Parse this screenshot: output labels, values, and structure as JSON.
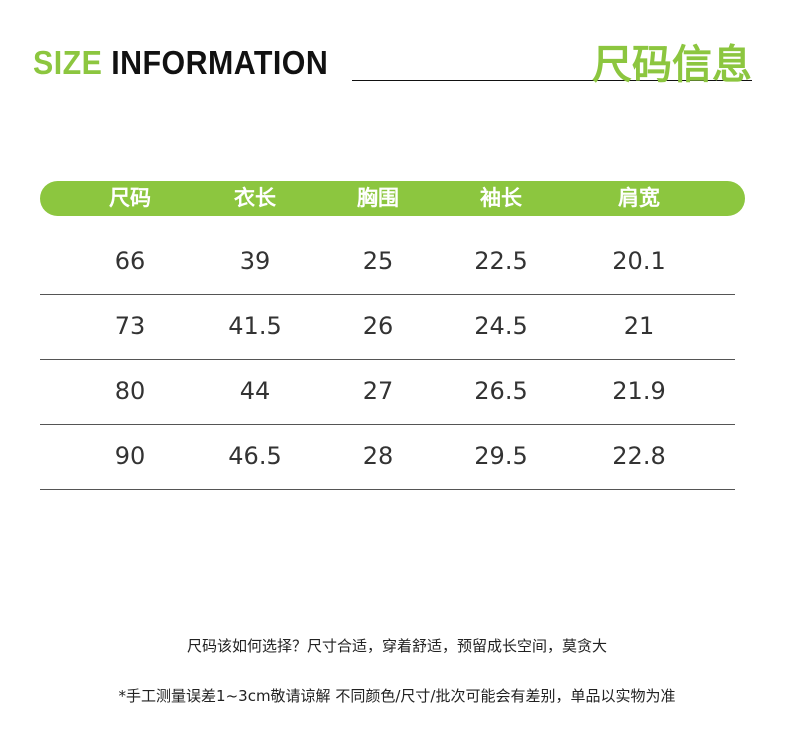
{
  "title": {
    "en_green": "SIZE",
    "en_black": "INFORMATION",
    "cn": "尺码信息"
  },
  "colors": {
    "accent": "#8cc63f",
    "text": "#333333"
  },
  "table": {
    "headers": [
      "尺码",
      "衣长",
      "胸围",
      "袖长",
      "肩宽"
    ],
    "rows": [
      [
        "66",
        "39",
        "25",
        "22.5",
        "20.1"
      ],
      [
        "73",
        "41.5",
        "26",
        "24.5",
        "21"
      ],
      [
        "80",
        "44",
        "27",
        "26.5",
        "21.9"
      ],
      [
        "90",
        "46.5",
        "28",
        "29.5",
        "22.8"
      ]
    ]
  },
  "notes": {
    "line1": "尺码该如何选择？尺寸合适，穿着舒适，预留成长空间，莫贪大",
    "line2": "*手工测量误差1~3cm敬请谅解 不同颜色/尺寸/批次可能会有差别，单品以实物为准"
  }
}
